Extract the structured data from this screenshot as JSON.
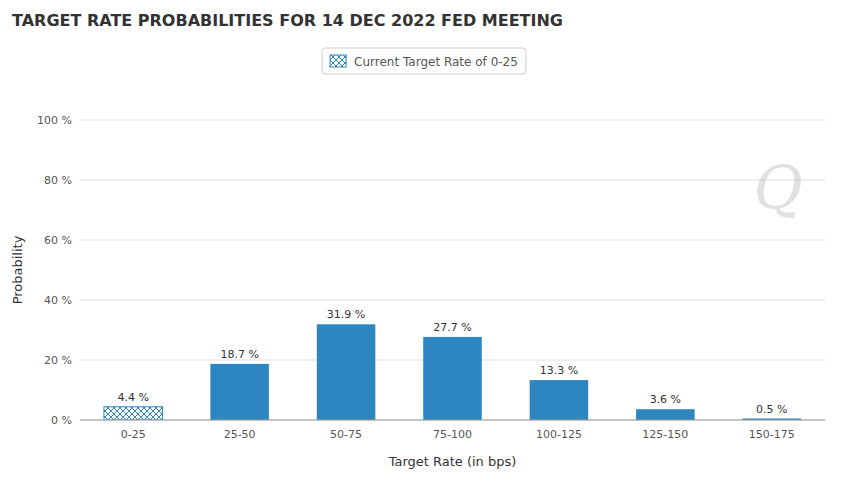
{
  "chart_data": {
    "type": "bar",
    "title": "TARGET RATE PROBABILITIES FOR 14 DEC 2022 FED MEETING",
    "xlabel": "Target Rate (in bps)",
    "ylabel": "Probability",
    "categories": [
      "0-25",
      "25-50",
      "50-75",
      "75-100",
      "100-125",
      "125-150",
      "150-175"
    ],
    "series": [
      {
        "name": "Current Target Rate of 0-25",
        "color": "#2e86c1",
        "values": [
          4.4,
          18.7,
          31.9,
          27.7,
          13.3,
          3.6,
          0.5
        ],
        "value_labels": [
          "4.4 %",
          "18.7 %",
          "31.9 %",
          "27.7 %",
          "13.3 %",
          "3.6 %",
          "0.5 %"
        ]
      }
    ],
    "ylim": [
      0,
      100
    ],
    "yticks": [
      {
        "value": 0,
        "label": "0 %"
      },
      {
        "value": 20,
        "label": "20 %"
      },
      {
        "value": 40,
        "label": "40 %"
      },
      {
        "value": 60,
        "label": "60 %"
      },
      {
        "value": 80,
        "label": "80 %"
      },
      {
        "value": 100,
        "label": "100 %"
      }
    ],
    "grid": true,
    "legend": "top",
    "data_labels": true,
    "annotations": [
      "Q"
    ]
  }
}
